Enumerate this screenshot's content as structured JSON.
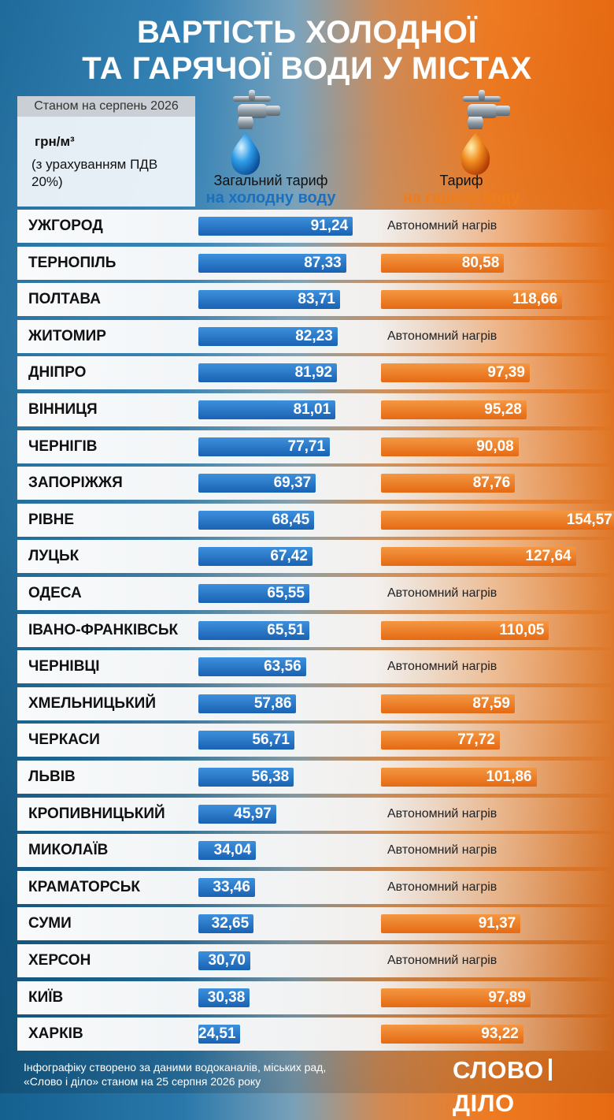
{
  "title_line1": "ВАРТІСТЬ ХОЛОДНОЇ",
  "title_line2": "ТА ГАРЯЧОЇ ВОДИ У МІСТАХ",
  "date_note": "Станом на серпень 2026",
  "unit": "грн/м³",
  "vat_note": "(з урахуванням ПДВ 20%)",
  "cold_header": {
    "line1": "Загальний тариф",
    "line2": "на холодну воду"
  },
  "hot_header": {
    "line1": "Тариф",
    "line2": "на гарячу воду"
  },
  "autonomous_label": "Автономний нагрів",
  "colors": {
    "cold": "#1a6fbf",
    "hot": "#ef7d1a"
  },
  "chart_data": {
    "type": "bar",
    "title": "ВАРТІСТЬ ХОЛОДНОЇ ТА ГАРЯЧОЇ ВОДИ У МІСТАХ",
    "unit": "грн/м³",
    "categories": [
      "УЖГОРОД",
      "ТЕРНОПІЛЬ",
      "ПОЛТАВА",
      "ЖИТОМИР",
      "ДНІПРО",
      "ВІННИЦЯ",
      "ЧЕРНІГІВ",
      "ЗАПОРІЖЖЯ",
      "РІВНЕ",
      "ЛУЦЬК",
      "ОДЕСА",
      "ІВАНО-ФРАНКІВСЬК",
      "ЧЕРНІВЦІ",
      "ХМЕЛЬНИЦЬКИЙ",
      "ЧЕРКАСИ",
      "ЛЬВІВ",
      "КРОПИВНИЦЬКИЙ",
      "МИКОЛАЇВ",
      "КРАМАТОРСЬК",
      "СУМИ",
      "ХЕРСОН",
      "КИЇВ",
      "ХАРКІВ"
    ],
    "series": [
      {
        "name": "Загальний тариф на холодну воду",
        "values": [
          91.24,
          87.33,
          83.71,
          82.23,
          81.92,
          81.01,
          77.71,
          69.37,
          68.45,
          67.42,
          65.55,
          65.51,
          63.56,
          57.86,
          56.71,
          56.38,
          45.97,
          34.04,
          33.46,
          32.65,
          30.7,
          30.38,
          24.51
        ],
        "labels": [
          "91,24",
          "87,33",
          "83,71",
          "82,23",
          "81,92",
          "81,01",
          "77,71",
          "69,37",
          "68,45",
          "67,42",
          "65,55",
          "65,51",
          "63,56",
          "57,86",
          "56,71",
          "56,38",
          "45,97",
          "34,04",
          "33,46",
          "32,65",
          "30,70",
          "30,38",
          "24,51"
        ]
      },
      {
        "name": "Тариф на гарячу воду",
        "values": [
          null,
          80.58,
          118.66,
          null,
          97.39,
          95.28,
          90.08,
          87.76,
          154.57,
          127.64,
          null,
          110.05,
          null,
          87.59,
          77.72,
          101.86,
          null,
          null,
          null,
          91.37,
          null,
          97.89,
          93.22
        ],
        "labels": [
          "Автономний нагрів",
          "80,58",
          "118,66",
          "Автономний нагрів",
          "97,39",
          "95,28",
          "90,08",
          "87,76",
          "154,57",
          "127,64",
          "Автономний нагрів",
          "110,05",
          "Автономний нагрів",
          "87,59",
          "77,72",
          "101,86",
          "Автономний нагрів",
          "Автономний нагрів",
          "Автономний нагрів",
          "91,37",
          "Автономний нагрів",
          "97,89",
          "93,22"
        ]
      }
    ]
  },
  "footer_line1": "Інфографіку створено за даними водоканалів, міських рад,",
  "footer_line2": "«Слово і діло» станом на 25 серпня 2026 року",
  "logo_left": "СЛОВО",
  "logo_right": "ДІЛО"
}
